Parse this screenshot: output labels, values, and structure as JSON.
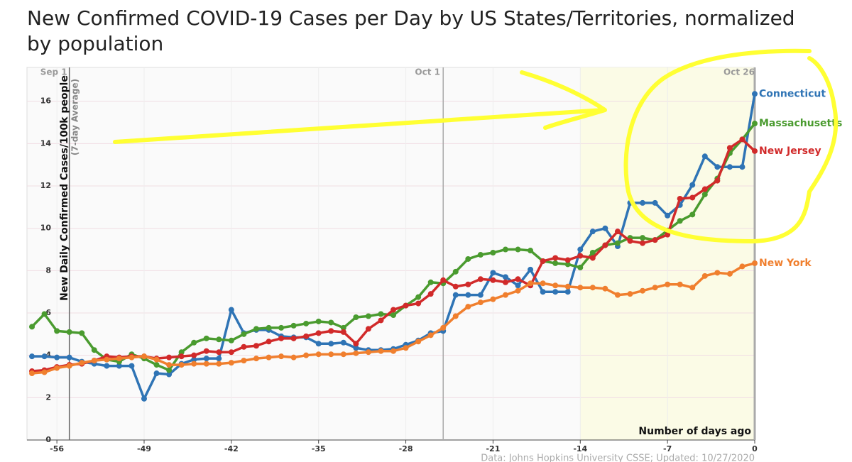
{
  "chart_data": {
    "type": "line",
    "title": "New Confirmed COVID-19 Cases per Day by US States/Territories, normalized by population",
    "y_label": "New Daily Confirmed Cases/100k people",
    "y_sublabel": "(7-day Average)",
    "x_label": "Number of days ago",
    "source": "Data: Johns Hopkins University CSSE; Updated: 10/27/2020",
    "x": [
      -58,
      -57,
      -56,
      -55,
      -54,
      -53,
      -52,
      -51,
      -50,
      -49,
      -48,
      -47,
      -46,
      -45,
      -44,
      -43,
      -42,
      -41,
      -40,
      -39,
      -38,
      -37,
      -36,
      -35,
      -34,
      -33,
      -32,
      -31,
      -30,
      -29,
      -28,
      -27,
      -26,
      -25,
      -24,
      -23,
      -22,
      -21,
      -20,
      -19,
      -18,
      -17,
      -16,
      -15,
      -14,
      -13,
      -12,
      -11,
      -10,
      -9,
      -8,
      -7,
      -6,
      -5,
      -4,
      -3,
      -2,
      -1,
      0
    ],
    "series": [
      {
        "name": "Connecticut",
        "color": "#2f74b5",
        "values": [
          3.95,
          3.95,
          3.9,
          3.9,
          3.7,
          3.6,
          3.5,
          3.5,
          3.5,
          1.95,
          3.15,
          3.1,
          3.6,
          3.8,
          3.85,
          3.85,
          6.15,
          5.05,
          5.2,
          5.2,
          4.9,
          4.85,
          4.85,
          4.55,
          4.55,
          4.6,
          4.35,
          4.25,
          4.25,
          4.3,
          4.5,
          4.7,
          5.05,
          5.15,
          6.85,
          6.85,
          6.85,
          7.9,
          7.7,
          7.3,
          8.05,
          7.0,
          7.0,
          7.0,
          9.0,
          9.85,
          10.0,
          9.15,
          11.2,
          11.2,
          11.2,
          10.6,
          11.1,
          12.05,
          13.4,
          12.9,
          12.9,
          12.9,
          16.35
        ]
      },
      {
        "name": "Massachusetts",
        "color": "#4a9b2f",
        "values": [
          5.35,
          5.95,
          5.15,
          5.1,
          5.05,
          4.25,
          3.8,
          3.7,
          4.05,
          3.85,
          3.55,
          3.3,
          4.15,
          4.6,
          4.8,
          4.75,
          4.7,
          5.0,
          5.25,
          5.3,
          5.3,
          5.4,
          5.5,
          5.6,
          5.55,
          5.3,
          5.8,
          5.85,
          5.95,
          5.9,
          6.35,
          6.75,
          7.45,
          7.4,
          7.95,
          8.55,
          8.75,
          8.85,
          9.0,
          9.0,
          8.95,
          8.45,
          8.35,
          8.3,
          8.15,
          8.85,
          9.2,
          9.3,
          9.55,
          9.55,
          9.45,
          9.9,
          10.35,
          10.65,
          11.6,
          12.35,
          13.55,
          14.2,
          14.95
        ]
      },
      {
        "name": "New Jersey",
        "color": "#d12a2a",
        "values": [
          3.25,
          3.3,
          3.45,
          3.55,
          3.6,
          3.75,
          3.95,
          3.9,
          3.95,
          3.95,
          3.85,
          3.9,
          3.95,
          4.0,
          4.2,
          4.15,
          4.15,
          4.4,
          4.45,
          4.65,
          4.8,
          4.8,
          4.9,
          5.05,
          5.15,
          5.1,
          4.55,
          5.25,
          5.65,
          6.15,
          6.35,
          6.45,
          6.9,
          7.55,
          7.25,
          7.35,
          7.6,
          7.55,
          7.45,
          7.6,
          7.3,
          8.45,
          8.6,
          8.5,
          8.7,
          8.6,
          9.2,
          9.85,
          9.4,
          9.3,
          9.45,
          9.7,
          11.4,
          11.45,
          11.85,
          12.25,
          13.8,
          14.2,
          13.65
        ]
      },
      {
        "name": "New York",
        "color": "#f07f2e",
        "values": [
          3.15,
          3.2,
          3.4,
          3.5,
          3.65,
          3.75,
          3.8,
          3.85,
          3.9,
          3.95,
          3.8,
          3.55,
          3.55,
          3.6,
          3.6,
          3.6,
          3.65,
          3.75,
          3.85,
          3.9,
          3.95,
          3.9,
          4.0,
          4.05,
          4.05,
          4.05,
          4.1,
          4.15,
          4.2,
          4.2,
          4.35,
          4.65,
          4.95,
          5.3,
          5.85,
          6.3,
          6.5,
          6.65,
          6.85,
          7.05,
          7.4,
          7.4,
          7.3,
          7.25,
          7.2,
          7.2,
          7.15,
          6.85,
          6.9,
          7.05,
          7.2,
          7.35,
          7.35,
          7.2,
          7.75,
          7.9,
          7.85,
          8.2,
          8.35
        ]
      }
    ],
    "xlim": [
      -58.4,
      0
    ],
    "ylim": [
      0,
      17.6
    ],
    "xticks": [
      -56,
      -49,
      -42,
      -35,
      -28,
      -21,
      -14,
      -7,
      0
    ],
    "yticks": [
      0,
      2,
      4,
      6,
      8,
      10,
      12,
      14,
      16
    ],
    "grid": true,
    "highlight_xlim": [
      -14,
      0
    ],
    "date_markers": [
      {
        "label": "Sep 1",
        "x": -55
      },
      {
        "label": "Oct 1",
        "x": -25
      },
      {
        "label": "Oct 26",
        "x": 0
      }
    ]
  }
}
